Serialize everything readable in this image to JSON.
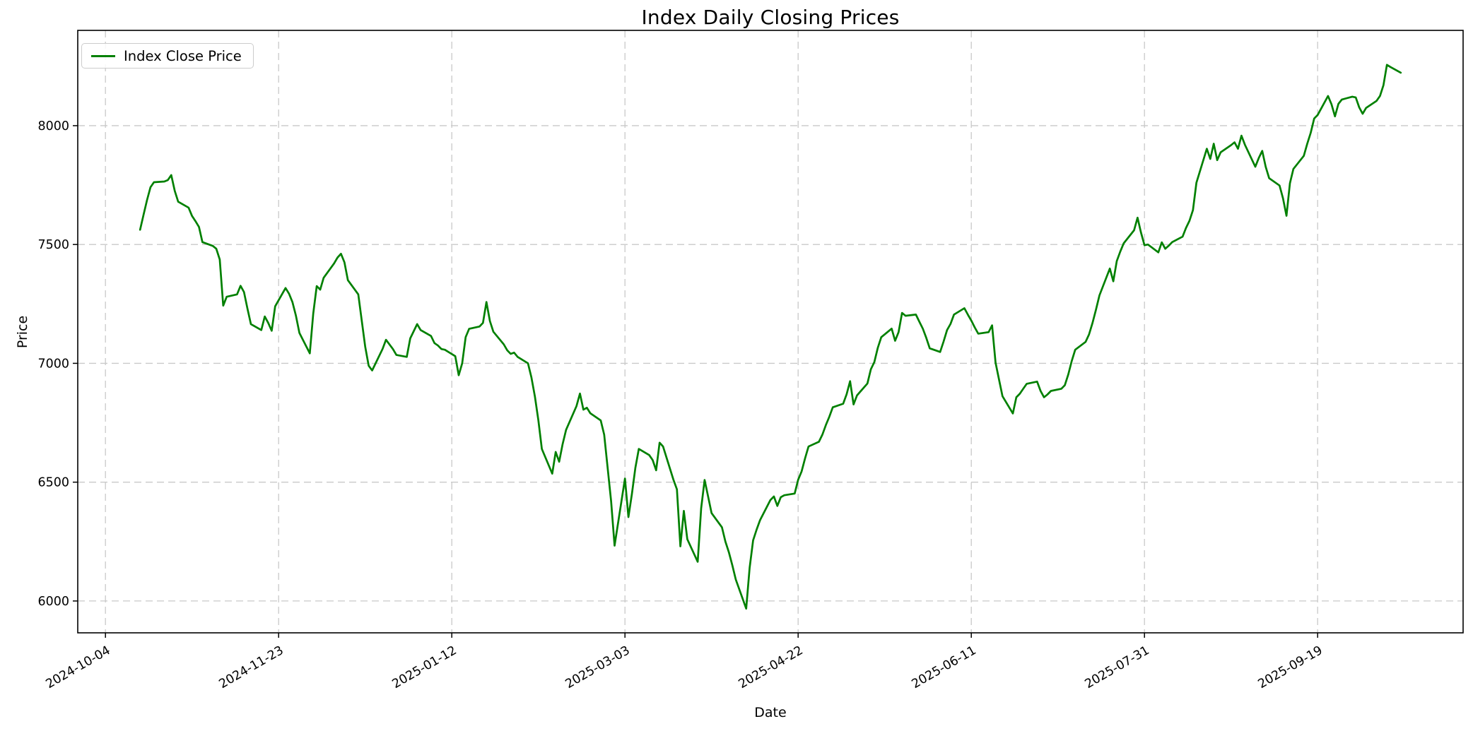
{
  "figure": {
    "title": "Index Daily Closing Prices"
  },
  "axes": {
    "x_label": "Date",
    "y_label": "Price"
  },
  "legend": {
    "label": "Index Close Price"
  },
  "colors": {
    "line": "#008000",
    "grid": "#c9c9c9",
    "spine": "#000000",
    "tick_text": "#000000",
    "background": "#ffffff",
    "legend_border": "#cccccc"
  },
  "chart_data": {
    "type": "line",
    "title": "Index Daily Closing Prices",
    "xlabel": "Date",
    "ylabel": "Price",
    "grid": true,
    "grid_style": "dashed",
    "legend_position": "upper left",
    "x_ticks": [
      "2024-10-04",
      "2024-11-23",
      "2025-01-12",
      "2025-03-03",
      "2025-04-22",
      "2025-06-11",
      "2025-07-31",
      "2025-09-19"
    ],
    "y_ticks": [
      6000,
      6500,
      7000,
      7500,
      8000
    ],
    "xlim": [
      "2024-09-26",
      "2025-10-31"
    ],
    "ylim": [
      5866,
      8401
    ],
    "series": [
      {
        "name": "Index Close Price",
        "color": "#008000",
        "points": [
          [
            "2024-10-14",
            7562
          ],
          [
            "2024-10-15",
            7625
          ],
          [
            "2024-10-16",
            7687
          ],
          [
            "2024-10-17",
            7741
          ],
          [
            "2024-10-18",
            7762
          ],
          [
            "2024-10-21",
            7765
          ],
          [
            "2024-10-22",
            7771
          ],
          [
            "2024-10-23",
            7792
          ],
          [
            "2024-10-24",
            7726
          ],
          [
            "2024-10-25",
            7680
          ],
          [
            "2024-10-28",
            7655
          ],
          [
            "2024-10-29",
            7620
          ],
          [
            "2024-10-30",
            7598
          ],
          [
            "2024-10-31",
            7574
          ],
          [
            "2024-11-01",
            7510
          ],
          [
            "2024-11-04",
            7494
          ],
          [
            "2024-11-05",
            7482
          ],
          [
            "2024-11-06",
            7437
          ],
          [
            "2024-11-07",
            7243
          ],
          [
            "2024-11-08",
            7280
          ],
          [
            "2024-11-11",
            7290
          ],
          [
            "2024-11-12",
            7326
          ],
          [
            "2024-11-13",
            7300
          ],
          [
            "2024-11-14",
            7230
          ],
          [
            "2024-11-15",
            7165
          ],
          [
            "2024-11-18",
            7140
          ],
          [
            "2024-11-19",
            7197
          ],
          [
            "2024-11-20",
            7170
          ],
          [
            "2024-11-21",
            7137
          ],
          [
            "2024-11-22",
            7240
          ],
          [
            "2024-11-25",
            7317
          ],
          [
            "2024-11-26",
            7293
          ],
          [
            "2024-11-27",
            7257
          ],
          [
            "2024-11-28",
            7200
          ],
          [
            "2024-11-29",
            7128
          ],
          [
            "2024-12-02",
            7042
          ],
          [
            "2024-12-03",
            7210
          ],
          [
            "2024-12-04",
            7325
          ],
          [
            "2024-12-05",
            7310
          ],
          [
            "2024-12-06",
            7360
          ],
          [
            "2024-12-09",
            7420
          ],
          [
            "2024-12-10",
            7445
          ],
          [
            "2024-12-11",
            7461
          ],
          [
            "2024-12-12",
            7425
          ],
          [
            "2024-12-13",
            7350
          ],
          [
            "2024-12-16",
            7290
          ],
          [
            "2024-12-17",
            7180
          ],
          [
            "2024-12-18",
            7070
          ],
          [
            "2024-12-19",
            6990
          ],
          [
            "2024-12-20",
            6970
          ],
          [
            "2024-12-23",
            7060
          ],
          [
            "2024-12-24",
            7099
          ],
          [
            "2024-12-26",
            7060
          ],
          [
            "2024-12-27",
            7035
          ],
          [
            "2024-12-30",
            7027
          ],
          [
            "2024-12-31",
            7105
          ],
          [
            "2025-01-02",
            7165
          ],
          [
            "2025-01-03",
            7140
          ],
          [
            "2025-01-06",
            7115
          ],
          [
            "2025-01-07",
            7085
          ],
          [
            "2025-01-08",
            7075
          ],
          [
            "2025-01-09",
            7060
          ],
          [
            "2025-01-10",
            7057
          ],
          [
            "2025-01-13",
            7030
          ],
          [
            "2025-01-14",
            6950
          ],
          [
            "2025-01-15",
            7000
          ],
          [
            "2025-01-16",
            7110
          ],
          [
            "2025-01-17",
            7145
          ],
          [
            "2025-01-20",
            7155
          ],
          [
            "2025-01-21",
            7170
          ],
          [
            "2025-01-22",
            7258
          ],
          [
            "2025-01-23",
            7178
          ],
          [
            "2025-01-24",
            7133
          ],
          [
            "2025-01-27",
            7080
          ],
          [
            "2025-01-28",
            7055
          ],
          [
            "2025-01-29",
            7040
          ],
          [
            "2025-01-30",
            7045
          ],
          [
            "2025-01-31",
            7027
          ],
          [
            "2025-02-03",
            7000
          ],
          [
            "2025-02-04",
            6940
          ],
          [
            "2025-02-05",
            6860
          ],
          [
            "2025-02-06",
            6760
          ],
          [
            "2025-02-07",
            6640
          ],
          [
            "2025-02-10",
            6536
          ],
          [
            "2025-02-11",
            6627
          ],
          [
            "2025-02-12",
            6586
          ],
          [
            "2025-02-13",
            6660
          ],
          [
            "2025-02-14",
            6720
          ],
          [
            "2025-02-17",
            6820
          ],
          [
            "2025-02-18",
            6873
          ],
          [
            "2025-02-19",
            6805
          ],
          [
            "2025-02-20",
            6813
          ],
          [
            "2025-02-21",
            6790
          ],
          [
            "2025-02-24",
            6760
          ],
          [
            "2025-02-25",
            6700
          ],
          [
            "2025-02-26",
            6560
          ],
          [
            "2025-02-27",
            6420
          ],
          [
            "2025-02-28",
            6233
          ],
          [
            "2025-03-03",
            6515
          ],
          [
            "2025-03-04",
            6353
          ],
          [
            "2025-03-05",
            6450
          ],
          [
            "2025-03-06",
            6560
          ],
          [
            "2025-03-07",
            6640
          ],
          [
            "2025-03-10",
            6614
          ],
          [
            "2025-03-11",
            6593
          ],
          [
            "2025-03-12",
            6550
          ],
          [
            "2025-03-13",
            6666
          ],
          [
            "2025-03-14",
            6650
          ],
          [
            "2025-03-17",
            6510
          ],
          [
            "2025-03-18",
            6470
          ],
          [
            "2025-03-19",
            6230
          ],
          [
            "2025-03-20",
            6379
          ],
          [
            "2025-03-21",
            6260
          ],
          [
            "2025-03-24",
            6165
          ],
          [
            "2025-03-25",
            6390
          ],
          [
            "2025-03-26",
            6509
          ],
          [
            "2025-03-27",
            6440
          ],
          [
            "2025-03-28",
            6370
          ],
          [
            "2025-03-31",
            6310
          ],
          [
            "2025-04-01",
            6250
          ],
          [
            "2025-04-02",
            6205
          ],
          [
            "2025-04-03",
            6150
          ],
          [
            "2025-04-04",
            6090
          ],
          [
            "2025-04-07",
            5968
          ],
          [
            "2025-04-08",
            6140
          ],
          [
            "2025-04-09",
            6255
          ],
          [
            "2025-04-10",
            6300
          ],
          [
            "2025-04-11",
            6340
          ],
          [
            "2025-04-14",
            6425
          ],
          [
            "2025-04-15",
            6440
          ],
          [
            "2025-04-16",
            6400
          ],
          [
            "2025-04-17",
            6437
          ],
          [
            "2025-04-18",
            6445
          ],
          [
            "2025-04-21",
            6452
          ],
          [
            "2025-04-22",
            6510
          ],
          [
            "2025-04-23",
            6545
          ],
          [
            "2025-04-24",
            6600
          ],
          [
            "2025-04-25",
            6650
          ],
          [
            "2025-04-28",
            6670
          ],
          [
            "2025-04-29",
            6700
          ],
          [
            "2025-04-30",
            6740
          ],
          [
            "2025-05-01",
            6775
          ],
          [
            "2025-05-02",
            6815
          ],
          [
            "2025-05-05",
            6830
          ],
          [
            "2025-05-06",
            6870
          ],
          [
            "2025-05-07",
            6925
          ],
          [
            "2025-05-08",
            6827
          ],
          [
            "2025-05-09",
            6865
          ],
          [
            "2025-05-12",
            6915
          ],
          [
            "2025-05-13",
            6975
          ],
          [
            "2025-05-14",
            7005
          ],
          [
            "2025-05-15",
            7065
          ],
          [
            "2025-05-16",
            7110
          ],
          [
            "2025-05-19",
            7146
          ],
          [
            "2025-05-20",
            7095
          ],
          [
            "2025-05-21",
            7131
          ],
          [
            "2025-05-22",
            7212
          ],
          [
            "2025-05-23",
            7200
          ],
          [
            "2025-05-26",
            7205
          ],
          [
            "2025-05-27",
            7175
          ],
          [
            "2025-05-28",
            7146
          ],
          [
            "2025-05-29",
            7107
          ],
          [
            "2025-05-30",
            7063
          ],
          [
            "2025-06-02",
            7048
          ],
          [
            "2025-06-03",
            7092
          ],
          [
            "2025-06-04",
            7140
          ],
          [
            "2025-06-05",
            7166
          ],
          [
            "2025-06-06",
            7205
          ],
          [
            "2025-06-09",
            7232
          ],
          [
            "2025-06-10",
            7205
          ],
          [
            "2025-06-11",
            7180
          ],
          [
            "2025-06-12",
            7151
          ],
          [
            "2025-06-13",
            7125
          ],
          [
            "2025-06-16",
            7131
          ],
          [
            "2025-06-17",
            7160
          ],
          [
            "2025-06-18",
            7003
          ],
          [
            "2025-06-19",
            6932
          ],
          [
            "2025-06-20",
            6862
          ],
          [
            "2025-06-23",
            6789
          ],
          [
            "2025-06-24",
            6857
          ],
          [
            "2025-06-25",
            6872
          ],
          [
            "2025-06-26",
            6893
          ],
          [
            "2025-06-27",
            6914
          ],
          [
            "2025-06-30",
            6923
          ],
          [
            "2025-07-01",
            6884
          ],
          [
            "2025-07-02",
            6857
          ],
          [
            "2025-07-03",
            6869
          ],
          [
            "2025-07-04",
            6884
          ],
          [
            "2025-07-07",
            6893
          ],
          [
            "2025-07-08",
            6908
          ],
          [
            "2025-07-09",
            6953
          ],
          [
            "2025-07-10",
            7010
          ],
          [
            "2025-07-11",
            7057
          ],
          [
            "2025-07-14",
            7090
          ],
          [
            "2025-07-15",
            7122
          ],
          [
            "2025-07-16",
            7170
          ],
          [
            "2025-07-17",
            7226
          ],
          [
            "2025-07-18",
            7286
          ],
          [
            "2025-07-21",
            7399
          ],
          [
            "2025-07-22",
            7345
          ],
          [
            "2025-07-23",
            7430
          ],
          [
            "2025-07-24",
            7470
          ],
          [
            "2025-07-25",
            7505
          ],
          [
            "2025-07-28",
            7560
          ],
          [
            "2025-07-29",
            7613
          ],
          [
            "2025-07-30",
            7550
          ],
          [
            "2025-07-31",
            7497
          ],
          [
            "2025-08-01",
            7500
          ],
          [
            "2025-08-04",
            7467
          ],
          [
            "2025-08-05",
            7509
          ],
          [
            "2025-08-06",
            7482
          ],
          [
            "2025-08-07",
            7495
          ],
          [
            "2025-08-08",
            7510
          ],
          [
            "2025-08-11",
            7533
          ],
          [
            "2025-08-12",
            7570
          ],
          [
            "2025-08-13",
            7600
          ],
          [
            "2025-08-14",
            7645
          ],
          [
            "2025-08-15",
            7760
          ],
          [
            "2025-08-18",
            7903
          ],
          [
            "2025-08-19",
            7860
          ],
          [
            "2025-08-20",
            7924
          ],
          [
            "2025-08-21",
            7855
          ],
          [
            "2025-08-22",
            7888
          ],
          [
            "2025-08-25",
            7918
          ],
          [
            "2025-08-26",
            7930
          ],
          [
            "2025-08-27",
            7903
          ],
          [
            "2025-08-28",
            7958
          ],
          [
            "2025-08-29",
            7920
          ],
          [
            "2025-09-01",
            7827
          ],
          [
            "2025-09-02",
            7864
          ],
          [
            "2025-09-03",
            7894
          ],
          [
            "2025-09-04",
            7827
          ],
          [
            "2025-09-05",
            7779
          ],
          [
            "2025-09-08",
            7748
          ],
          [
            "2025-09-09",
            7694
          ],
          [
            "2025-09-10",
            7621
          ],
          [
            "2025-09-11",
            7758
          ],
          [
            "2025-09-12",
            7818
          ],
          [
            "2025-09-15",
            7873
          ],
          [
            "2025-09-16",
            7924
          ],
          [
            "2025-09-17",
            7970
          ],
          [
            "2025-09-18",
            8030
          ],
          [
            "2025-09-19",
            8045
          ],
          [
            "2025-09-22",
            8125
          ],
          [
            "2025-09-23",
            8090
          ],
          [
            "2025-09-24",
            8039
          ],
          [
            "2025-09-25",
            8092
          ],
          [
            "2025-09-26",
            8110
          ],
          [
            "2025-09-29",
            8122
          ],
          [
            "2025-09-30",
            8119
          ],
          [
            "2025-10-01",
            8077
          ],
          [
            "2025-10-02",
            8050
          ],
          [
            "2025-10-03",
            8075
          ],
          [
            "2025-10-06",
            8104
          ],
          [
            "2025-10-07",
            8125
          ],
          [
            "2025-10-08",
            8170
          ],
          [
            "2025-10-09",
            8256
          ],
          [
            "2025-10-10",
            8247
          ],
          [
            "2025-10-13",
            8223
          ]
        ]
      }
    ]
  }
}
